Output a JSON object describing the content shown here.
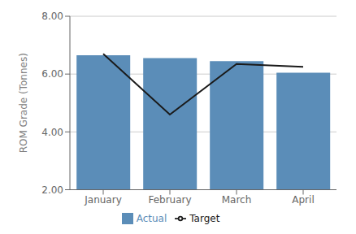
{
  "chart_data": {
    "type": "bar",
    "categories": [
      "January",
      "February",
      "March",
      "April"
    ],
    "series": [
      {
        "name": "Actual",
        "type": "bar",
        "color": "#5b8db8",
        "values": [
          6.65,
          6.55,
          6.45,
          6.05
        ]
      },
      {
        "name": "Target",
        "type": "line",
        "color": "#1a1a1a",
        "values": [
          6.7,
          4.6,
          6.35,
          6.25
        ]
      }
    ],
    "ylabel": "ROM Grade (Tonnes)",
    "ylim": [
      2.0,
      8.0
    ],
    "yticks": [
      {
        "value": 2.0,
        "label": "2.00"
      },
      {
        "value": 4.0,
        "label": "4.00"
      },
      {
        "value": 6.0,
        "label": "6.00"
      },
      {
        "value": 8.0,
        "label": "8.00"
      }
    ],
    "grid": true
  }
}
